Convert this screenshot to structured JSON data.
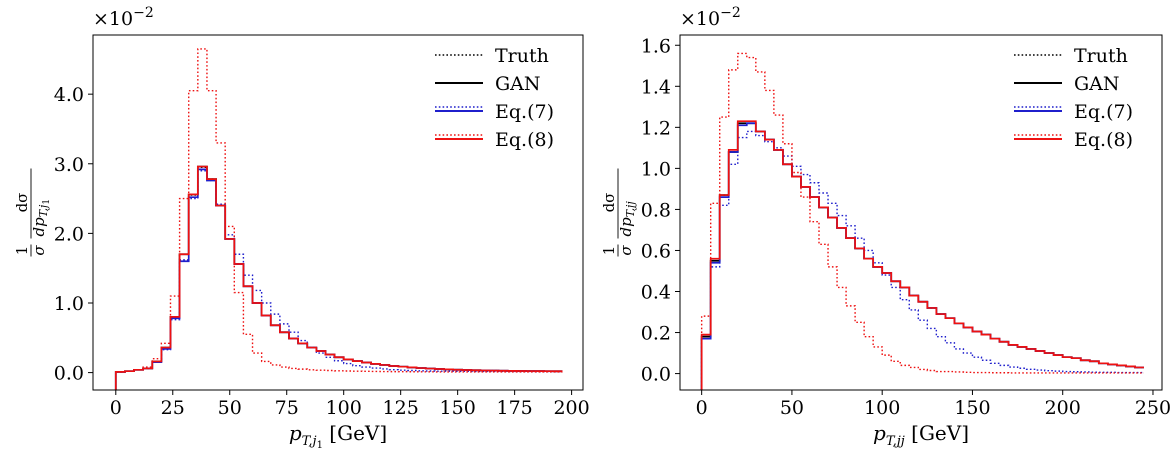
{
  "colors": {
    "truth": "#000000",
    "gan": "#000000",
    "eq7": "#1f1fcc",
    "eq8": "#ee1111"
  },
  "chart_data": [
    {
      "type": "line",
      "step": true,
      "xlabel": "p_T,j1 [GeV]",
      "xlabel_parts": [
        "p",
        "T,j",
        "1",
        " [GeV]"
      ],
      "ylabel_parts": [
        "1",
        "dσ",
        "σ dp",
        "T,j",
        "1"
      ],
      "y_multiplier": "×10−2",
      "y_multiplier_parts": [
        "×10",
        "−2"
      ],
      "xlim": [
        -10,
        205
      ],
      "ylim": [
        -0.25,
        4.85
      ],
      "xticks": [
        0,
        25,
        50,
        75,
        100,
        125,
        150,
        175,
        200
      ],
      "xtick_labels": [
        "0",
        "25",
        "50",
        "75",
        "100",
        "125",
        "150",
        "175",
        "200"
      ],
      "yticks": [
        0,
        1,
        2,
        3,
        4
      ],
      "ytick_labels": [
        "0.0",
        "1.0",
        "2.0",
        "3.0",
        "4.0"
      ],
      "legend_position": "top-right",
      "legend": [
        "Truth",
        "GAN",
        "Eq.(7)",
        "Eq.(8)"
      ],
      "bin_edges_start": 0,
      "bin_width": 4,
      "series": [
        {
          "name": "Truth",
          "style": "dotted",
          "color_key": "truth",
          "values": [
            0.01,
            0.02,
            0.04,
            0.06,
            0.16,
            0.36,
            0.8,
            1.7,
            2.55,
            2.95,
            2.78,
            2.4,
            1.92,
            1.56,
            1.24,
            1.0,
            0.82,
            0.68,
            0.58,
            0.49,
            0.42,
            0.36,
            0.31,
            0.26,
            0.22,
            0.19,
            0.165,
            0.145,
            0.125,
            0.11,
            0.095,
            0.085,
            0.075,
            0.065,
            0.058,
            0.052,
            0.046,
            0.041,
            0.037,
            0.034,
            0.031,
            0.029,
            0.027,
            0.025,
            0.023,
            0.022,
            0.021,
            0.02,
            0.019
          ]
        },
        {
          "name": "GAN",
          "style": "solid",
          "color_key": "gan",
          "values": [
            0.01,
            0.02,
            0.04,
            0.06,
            0.16,
            0.36,
            0.8,
            1.7,
            2.56,
            2.96,
            2.78,
            2.4,
            1.92,
            1.56,
            1.24,
            1.0,
            0.82,
            0.68,
            0.58,
            0.49,
            0.42,
            0.36,
            0.31,
            0.26,
            0.22,
            0.19,
            0.165,
            0.145,
            0.125,
            0.11,
            0.095,
            0.085,
            0.075,
            0.065,
            0.058,
            0.052,
            0.046,
            0.041,
            0.037,
            0.034,
            0.031,
            0.029,
            0.027,
            0.025,
            0.023,
            0.022,
            0.021,
            0.02,
            0.019
          ]
        },
        {
          "name": "Eq.(7)",
          "style": "solid",
          "color_key": "eq7",
          "values": [
            0.01,
            0.02,
            0.04,
            0.06,
            0.15,
            0.34,
            0.78,
            1.6,
            2.52,
            2.92,
            2.76,
            2.4,
            1.92,
            1.56,
            1.24,
            1.0,
            0.82,
            0.68,
            0.58,
            0.49,
            0.42,
            0.36,
            0.31,
            0.26,
            0.22,
            0.19,
            0.165,
            0.145,
            0.125,
            0.11,
            0.095,
            0.085,
            0.075,
            0.065,
            0.058,
            0.052,
            0.046,
            0.041,
            0.037,
            0.034,
            0.031,
            0.029,
            0.027,
            0.025,
            0.023,
            0.022,
            0.021,
            0.02,
            0.019
          ]
        },
        {
          "name": "Eq.(7)",
          "style": "dotted",
          "color_key": "eq7",
          "values": [
            0.01,
            0.02,
            0.04,
            0.06,
            0.15,
            0.33,
            0.76,
            1.62,
            2.5,
            2.9,
            2.76,
            2.42,
            1.98,
            1.7,
            1.4,
            1.18,
            1.0,
            0.84,
            0.7,
            0.58,
            0.46,
            0.36,
            0.28,
            0.22,
            0.17,
            0.13,
            0.1,
            0.08,
            0.065,
            0.052,
            0.042,
            0.035,
            0.03,
            0.026,
            0.023,
            0.021,
            0.02,
            0.019,
            0.018,
            0.017,
            0.017,
            0.016,
            0.016,
            0.015,
            0.015,
            0.015,
            0.014,
            0.014,
            0.014
          ]
        },
        {
          "name": "Eq.(8)",
          "style": "solid",
          "color_key": "eq8",
          "values": [
            0.01,
            0.02,
            0.04,
            0.06,
            0.16,
            0.36,
            0.8,
            1.7,
            2.56,
            2.96,
            2.78,
            2.4,
            1.92,
            1.56,
            1.24,
            1.0,
            0.82,
            0.68,
            0.58,
            0.49,
            0.42,
            0.36,
            0.31,
            0.26,
            0.22,
            0.19,
            0.165,
            0.145,
            0.125,
            0.11,
            0.095,
            0.085,
            0.075,
            0.065,
            0.058,
            0.052,
            0.046,
            0.041,
            0.037,
            0.034,
            0.031,
            0.029,
            0.027,
            0.025,
            0.023,
            0.022,
            0.021,
            0.02,
            0.019
          ]
        },
        {
          "name": "Eq.(8)",
          "style": "dotted",
          "color_key": "eq8",
          "values": [
            0.01,
            0.02,
            0.04,
            0.08,
            0.2,
            0.42,
            1.1,
            2.5,
            4.05,
            4.65,
            4.05,
            3.3,
            2.1,
            1.15,
            0.55,
            0.28,
            0.16,
            0.11,
            0.08,
            0.06,
            0.05,
            0.04,
            0.035,
            0.03,
            0.026,
            0.023,
            0.02,
            0.018,
            0.016,
            0.015,
            0.014,
            0.013,
            0.012,
            0.011,
            0.011,
            0.01,
            0.01,
            0.01,
            0.01,
            0.01,
            0.01,
            0.01,
            0.01,
            0.01,
            0.01,
            0.01,
            0.01,
            0.01,
            0.01
          ]
        }
      ]
    },
    {
      "type": "line",
      "step": true,
      "xlabel": "p_T,jj [GeV]",
      "xlabel_parts": [
        "p",
        "T,jj",
        "",
        " [GeV]"
      ],
      "ylabel_parts": [
        "1",
        "dσ",
        "σ dp",
        "T,jj",
        ""
      ],
      "y_multiplier": "×10−2",
      "y_multiplier_parts": [
        "×10",
        "−2"
      ],
      "xlim": [
        -12,
        255
      ],
      "ylim": [
        -0.08,
        1.65
      ],
      "xticks": [
        0,
        50,
        100,
        150,
        200,
        250
      ],
      "xtick_labels": [
        "0",
        "50",
        "100",
        "150",
        "200",
        "250"
      ],
      "yticks": [
        0,
        0.2,
        0.4,
        0.6,
        0.8,
        1.0,
        1.2,
        1.4,
        1.6
      ],
      "ytick_labels": [
        "0.0",
        "0.2",
        "0.4",
        "0.6",
        "0.8",
        "1.0",
        "1.2",
        "1.4",
        "1.6"
      ],
      "legend_position": "top-right",
      "legend": [
        "Truth",
        "GAN",
        "Eq.(7)",
        "Eq.(8)"
      ],
      "bin_edges_start": 0,
      "bin_width": 5,
      "series": [
        {
          "name": "Truth",
          "style": "dotted",
          "color_key": "truth",
          "values": [
            0.18,
            0.55,
            0.87,
            1.08,
            1.21,
            1.22,
            1.18,
            1.14,
            1.09,
            1.02,
            0.96,
            0.91,
            0.86,
            0.81,
            0.76,
            0.71,
            0.66,
            0.61,
            0.56,
            0.52,
            0.49,
            0.45,
            0.42,
            0.38,
            0.35,
            0.32,
            0.29,
            0.27,
            0.245,
            0.225,
            0.205,
            0.19,
            0.17,
            0.155,
            0.14,
            0.13,
            0.12,
            0.11,
            0.1,
            0.09,
            0.08,
            0.075,
            0.065,
            0.06,
            0.05,
            0.045,
            0.04,
            0.035,
            0.03
          ]
        },
        {
          "name": "GAN",
          "style": "solid",
          "color_key": "gan",
          "values": [
            0.18,
            0.55,
            0.87,
            1.08,
            1.22,
            1.22,
            1.18,
            1.14,
            1.09,
            1.02,
            0.96,
            0.91,
            0.86,
            0.81,
            0.76,
            0.71,
            0.66,
            0.61,
            0.56,
            0.52,
            0.49,
            0.45,
            0.42,
            0.38,
            0.35,
            0.32,
            0.29,
            0.27,
            0.245,
            0.225,
            0.205,
            0.19,
            0.17,
            0.155,
            0.14,
            0.13,
            0.12,
            0.11,
            0.1,
            0.09,
            0.08,
            0.075,
            0.065,
            0.06,
            0.05,
            0.045,
            0.04,
            0.035,
            0.03
          ]
        },
        {
          "name": "Eq.(7)",
          "style": "solid",
          "color_key": "eq7",
          "values": [
            0.17,
            0.54,
            0.86,
            1.08,
            1.21,
            1.22,
            1.18,
            1.14,
            1.09,
            1.02,
            0.96,
            0.91,
            0.86,
            0.81,
            0.76,
            0.71,
            0.66,
            0.61,
            0.56,
            0.52,
            0.49,
            0.45,
            0.42,
            0.38,
            0.35,
            0.32,
            0.29,
            0.27,
            0.245,
            0.225,
            0.205,
            0.19,
            0.17,
            0.155,
            0.14,
            0.13,
            0.12,
            0.11,
            0.1,
            0.09,
            0.08,
            0.075,
            0.065,
            0.06,
            0.05,
            0.045,
            0.04,
            0.035,
            0.03
          ]
        },
        {
          "name": "Eq.(7)",
          "style": "dotted",
          "color_key": "eq7",
          "values": [
            0.17,
            0.52,
            0.82,
            1.02,
            1.15,
            1.18,
            1.16,
            1.13,
            1.1,
            1.06,
            1.01,
            0.97,
            0.93,
            0.88,
            0.83,
            0.77,
            0.72,
            0.66,
            0.6,
            0.54,
            0.48,
            0.42,
            0.36,
            0.31,
            0.26,
            0.22,
            0.18,
            0.15,
            0.12,
            0.1,
            0.08,
            0.065,
            0.05,
            0.04,
            0.032,
            0.026,
            0.021,
            0.017,
            0.014,
            0.012,
            0.01,
            0.009,
            0.008,
            0.007,
            0.006,
            0.006,
            0.005,
            0.005,
            0.005
          ]
        },
        {
          "name": "Eq.(8)",
          "style": "solid",
          "color_key": "eq8",
          "values": [
            0.19,
            0.56,
            0.87,
            1.09,
            1.23,
            1.23,
            1.18,
            1.14,
            1.09,
            1.02,
            0.96,
            0.91,
            0.86,
            0.81,
            0.76,
            0.71,
            0.66,
            0.61,
            0.56,
            0.52,
            0.49,
            0.45,
            0.42,
            0.38,
            0.35,
            0.32,
            0.29,
            0.27,
            0.245,
            0.225,
            0.205,
            0.19,
            0.17,
            0.155,
            0.14,
            0.13,
            0.12,
            0.11,
            0.1,
            0.09,
            0.08,
            0.075,
            0.065,
            0.06,
            0.05,
            0.045,
            0.04,
            0.035,
            0.03
          ]
        },
        {
          "name": "Eq.(8)",
          "style": "dotted",
          "color_key": "eq8",
          "values": [
            0.28,
            0.83,
            1.25,
            1.48,
            1.56,
            1.54,
            1.47,
            1.38,
            1.26,
            1.12,
            0.98,
            0.86,
            0.74,
            0.63,
            0.52,
            0.42,
            0.33,
            0.25,
            0.18,
            0.13,
            0.09,
            0.06,
            0.04,
            0.03,
            0.02,
            0.015,
            0.01,
            0.01,
            0.008,
            0.006,
            0.005,
            0.005,
            0.004,
            0.004,
            0.003,
            0.003,
            0.003,
            0.003,
            0.003,
            0.003,
            0.003,
            0.003,
            0.003,
            0.003,
            0.003,
            0.003,
            0.003,
            0.003,
            0.003
          ]
        }
      ]
    }
  ]
}
